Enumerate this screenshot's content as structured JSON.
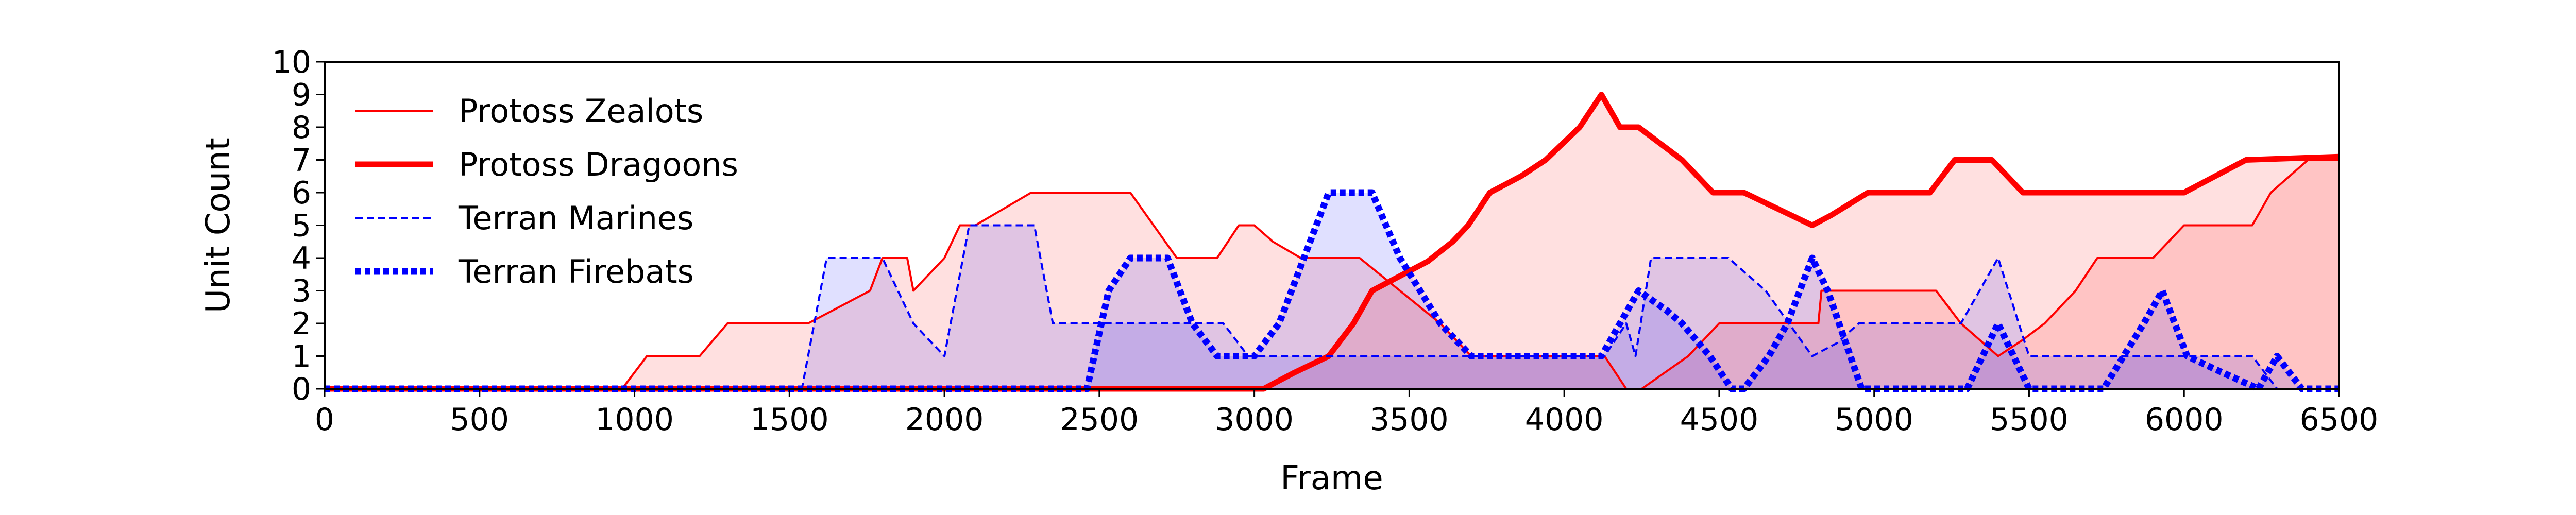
{
  "chart_data": {
    "type": "area",
    "xlabel": "Frame",
    "ylabel": "Unit Count",
    "xlim": [
      0,
      6500
    ],
    "ylim": [
      0,
      10
    ],
    "xticks": [
      0,
      500,
      1000,
      1500,
      2000,
      2500,
      3000,
      3500,
      4000,
      4500,
      5000,
      5500,
      6000,
      6500
    ],
    "yticks": [
      0,
      1,
      2,
      3,
      4,
      5,
      6,
      7,
      8,
      9,
      10
    ],
    "grid": false,
    "legend_position": "top-left",
    "series": [
      {
        "name": "Protoss Zealots",
        "color": "#ff0000",
        "line": "solid-thin",
        "points": [
          [
            0,
            0
          ],
          [
            960,
            0
          ],
          [
            1040,
            1
          ],
          [
            1210,
            1
          ],
          [
            1300,
            2
          ],
          [
            1560,
            2
          ],
          [
            1760,
            3
          ],
          [
            1800,
            4
          ],
          [
            1880,
            4
          ],
          [
            1900,
            3
          ],
          [
            2000,
            4
          ],
          [
            2050,
            5
          ],
          [
            2100,
            5
          ],
          [
            2280,
            6
          ],
          [
            2600,
            6
          ],
          [
            2750,
            4
          ],
          [
            2880,
            4
          ],
          [
            2950,
            5
          ],
          [
            3000,
            5
          ],
          [
            3060,
            4.5
          ],
          [
            3150,
            4
          ],
          [
            3240,
            4
          ],
          [
            3300,
            4
          ],
          [
            3340,
            4
          ],
          [
            3470,
            3
          ],
          [
            3600,
            2
          ],
          [
            3700,
            1
          ],
          [
            3750,
            1
          ],
          [
            4000,
            1
          ],
          [
            4130,
            1
          ],
          [
            4200,
            0
          ],
          [
            4250,
            0
          ],
          [
            4400,
            1
          ],
          [
            4500,
            2
          ],
          [
            4640,
            2
          ],
          [
            4820,
            2
          ],
          [
            4830,
            3
          ],
          [
            5200,
            3
          ],
          [
            5280,
            2
          ],
          [
            5400,
            1
          ],
          [
            5480,
            1.5
          ],
          [
            5550,
            2
          ],
          [
            5650,
            3
          ],
          [
            5720,
            4
          ],
          [
            5900,
            4
          ],
          [
            6000,
            5
          ],
          [
            6220,
            5
          ],
          [
            6280,
            6
          ],
          [
            6400,
            7
          ],
          [
            6500,
            7
          ]
        ]
      },
      {
        "name": "Protoss Dragoons",
        "color": "#ff0000",
        "line": "solid-thick",
        "points": [
          [
            0,
            0
          ],
          [
            3030,
            0
          ],
          [
            3130,
            0.5
          ],
          [
            3240,
            1
          ],
          [
            3320,
            2
          ],
          [
            3380,
            3
          ],
          [
            3480,
            3.5
          ],
          [
            3560,
            3.9
          ],
          [
            3640,
            4.5
          ],
          [
            3690,
            5
          ],
          [
            3760,
            6
          ],
          [
            3860,
            6.5
          ],
          [
            3940,
            7
          ],
          [
            4050,
            8
          ],
          [
            4120,
            9
          ],
          [
            4180,
            8
          ],
          [
            4240,
            8
          ],
          [
            4380,
            7
          ],
          [
            4480,
            6
          ],
          [
            4580,
            6
          ],
          [
            4800,
            5
          ],
          [
            4860,
            5.3
          ],
          [
            4980,
            6
          ],
          [
            5180,
            6
          ],
          [
            5260,
            7
          ],
          [
            5380,
            7
          ],
          [
            5480,
            6
          ],
          [
            6000,
            6
          ],
          [
            6200,
            7
          ],
          [
            6500,
            7.1
          ]
        ]
      },
      {
        "name": "Terran Marines",
        "color": "#0000ff",
        "line": "dashed-thin",
        "points": [
          [
            0,
            0
          ],
          [
            1540,
            0
          ],
          [
            1620,
            4
          ],
          [
            1800,
            4
          ],
          [
            1850,
            3
          ],
          [
            1900,
            2
          ],
          [
            1980,
            1.2
          ],
          [
            2000,
            1
          ],
          [
            2080,
            5
          ],
          [
            2290,
            5
          ],
          [
            2350,
            2
          ],
          [
            2700,
            2
          ],
          [
            2900,
            2
          ],
          [
            2980,
            1
          ],
          [
            3380,
            1
          ],
          [
            3530,
            1
          ],
          [
            3650,
            1
          ],
          [
            3720,
            1
          ],
          [
            4130,
            1
          ],
          [
            4200,
            2
          ],
          [
            4230,
            1
          ],
          [
            4280,
            4
          ],
          [
            4530,
            4
          ],
          [
            4650,
            3
          ],
          [
            4800,
            1
          ],
          [
            4880,
            1.4
          ],
          [
            4950,
            2
          ],
          [
            5150,
            2
          ],
          [
            5280,
            2
          ],
          [
            5400,
            4
          ],
          [
            5500,
            1
          ],
          [
            5700,
            1
          ],
          [
            6100,
            1
          ],
          [
            6220,
            1
          ],
          [
            6300,
            0
          ],
          [
            6500,
            0
          ]
        ]
      },
      {
        "name": "Terran Firebats",
        "color": "#0000ff",
        "line": "dotted-thick",
        "points": [
          [
            0,
            0
          ],
          [
            2460,
            0
          ],
          [
            2530,
            3
          ],
          [
            2600,
            4
          ],
          [
            2720,
            4
          ],
          [
            2800,
            2
          ],
          [
            2880,
            1
          ],
          [
            3000,
            1
          ],
          [
            3080,
            2
          ],
          [
            3240,
            6
          ],
          [
            3380,
            6
          ],
          [
            3470,
            4
          ],
          [
            3600,
            2
          ],
          [
            3700,
            1
          ],
          [
            4120,
            1
          ],
          [
            4240,
            3
          ],
          [
            4330,
            2.4
          ],
          [
            4380,
            2
          ],
          [
            4470,
            1
          ],
          [
            4540,
            0
          ],
          [
            4580,
            0
          ],
          [
            4660,
            1
          ],
          [
            4720,
            2
          ],
          [
            4800,
            4
          ],
          [
            4850,
            3
          ],
          [
            4960,
            0
          ],
          [
            5300,
            0
          ],
          [
            5400,
            2
          ],
          [
            5500,
            0
          ],
          [
            5620,
            0
          ],
          [
            5740,
            0
          ],
          [
            5870,
            2
          ],
          [
            5930,
            3
          ],
          [
            6010,
            1
          ],
          [
            6100,
            0.6
          ],
          [
            6240,
            0
          ],
          [
            6300,
            1
          ],
          [
            6380,
            0
          ],
          [
            6500,
            0
          ]
        ]
      }
    ]
  }
}
